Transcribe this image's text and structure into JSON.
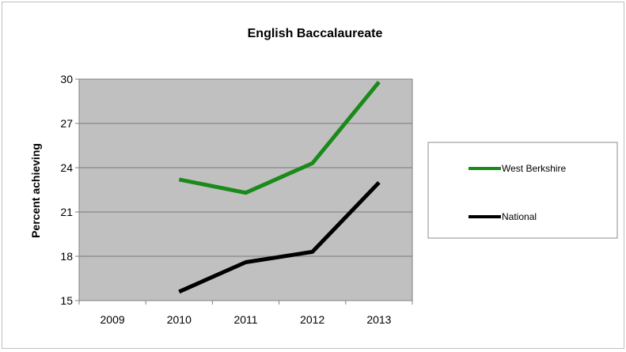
{
  "chart_data": {
    "type": "line",
    "title": "English Baccalaureate",
    "xlabel": "",
    "ylabel": "Percent achieving",
    "categories": [
      "2009",
      "2010",
      "2011",
      "2012",
      "2013"
    ],
    "ylim": [
      15,
      30
    ],
    "yticks": [
      15,
      18,
      21,
      24,
      27,
      30
    ],
    "grid": true,
    "plot_background": "#c0c0c0",
    "legend_position": "right",
    "series": [
      {
        "name": "West Berkshire",
        "color": "#1a8a1a",
        "values": [
          null,
          23.2,
          22.3,
          24.3,
          29.8
        ]
      },
      {
        "name": "National",
        "color": "#000000",
        "values": [
          null,
          15.6,
          17.6,
          18.3,
          23.0
        ]
      }
    ]
  }
}
